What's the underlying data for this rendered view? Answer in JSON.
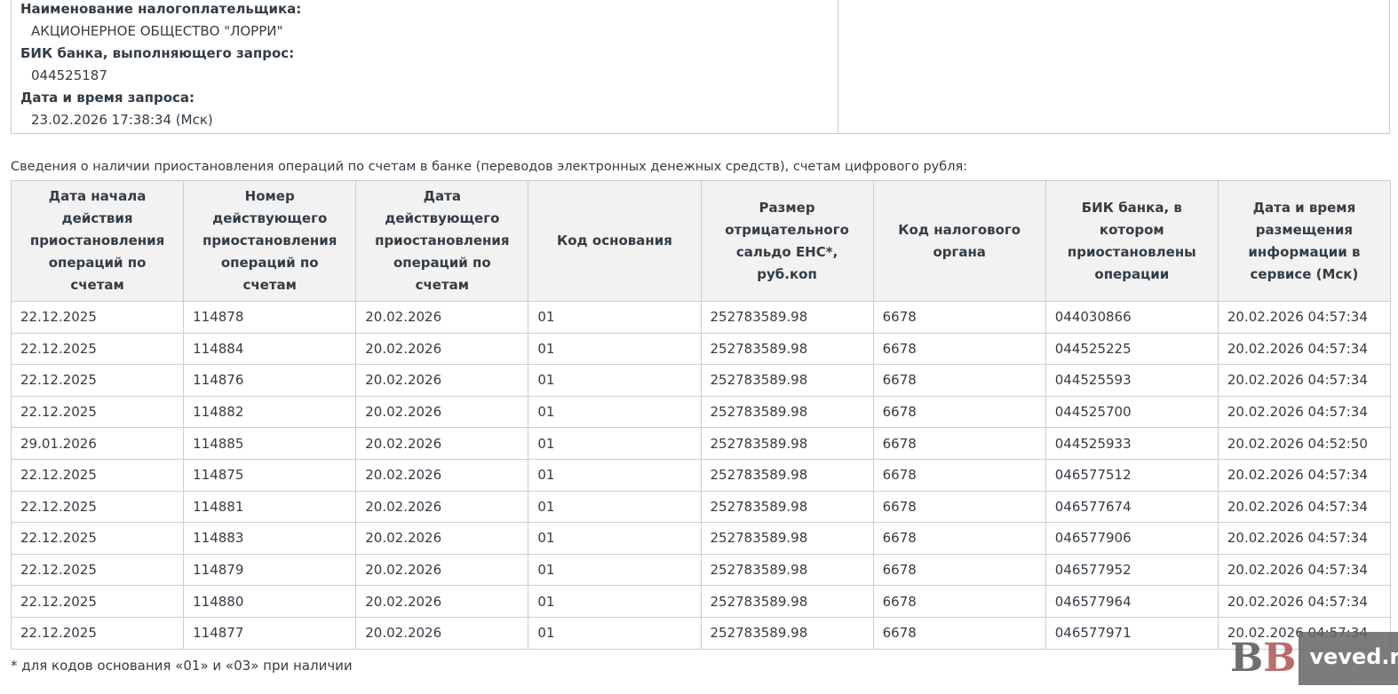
{
  "info": {
    "taxpayer_label": "Наименование налогоплательщика:",
    "taxpayer_value": "АКЦИОНЕРНОЕ ОБЩЕСТВО \"ЛОРРИ\"",
    "bik_label": "БИК банка, выполняющего запрос:",
    "bik_value": "044525187",
    "datetime_label": "Дата и время запроса:",
    "datetime_value": "23.02.2026 17:38:34 (Мск)"
  },
  "caption": "Сведения о наличии приостановления операций по счетам в банке (переводов электронных денежных средств), счетам цифрового рубля:",
  "table": {
    "headers": [
      "Дата начала действия приостановления операций по счетам",
      "Номер действующего приостановления операций по счетам",
      "Дата действующего приостановления операций по счетам",
      "Код основания",
      "Размер отрицательного сальдо ЕНС*, руб.коп",
      "Код налогового органа",
      "БИК банка, в котором приостановлены операции",
      "Дата и время размещения информации в сервисе (Мск)"
    ],
    "rows": [
      [
        "22.12.2025",
        "114878",
        "20.02.2026",
        "01",
        "252783589.98",
        "6678",
        "044030866",
        "20.02.2026 04:57:34"
      ],
      [
        "22.12.2025",
        "114884",
        "20.02.2026",
        "01",
        "252783589.98",
        "6678",
        "044525225",
        "20.02.2026 04:57:34"
      ],
      [
        "22.12.2025",
        "114876",
        "20.02.2026",
        "01",
        "252783589.98",
        "6678",
        "044525593",
        "20.02.2026 04:57:34"
      ],
      [
        "22.12.2025",
        "114882",
        "20.02.2026",
        "01",
        "252783589.98",
        "6678",
        "044525700",
        "20.02.2026 04:57:34"
      ],
      [
        "29.01.2026",
        "114885",
        "20.02.2026",
        "01",
        "252783589.98",
        "6678",
        "044525933",
        "20.02.2026 04:52:50"
      ],
      [
        "22.12.2025",
        "114875",
        "20.02.2026",
        "01",
        "252783589.98",
        "6678",
        "046577512",
        "20.02.2026 04:57:34"
      ],
      [
        "22.12.2025",
        "114881",
        "20.02.2026",
        "01",
        "252783589.98",
        "6678",
        "046577674",
        "20.02.2026 04:57:34"
      ],
      [
        "22.12.2025",
        "114883",
        "20.02.2026",
        "01",
        "252783589.98",
        "6678",
        "046577906",
        "20.02.2026 04:57:34"
      ],
      [
        "22.12.2025",
        "114879",
        "20.02.2026",
        "01",
        "252783589.98",
        "6678",
        "046577952",
        "20.02.2026 04:57:34"
      ],
      [
        "22.12.2025",
        "114880",
        "20.02.2026",
        "01",
        "252783589.98",
        "6678",
        "046577964",
        "20.02.2026 04:57:34"
      ],
      [
        "22.12.2025",
        "114877",
        "20.02.2026",
        "01",
        "252783589.98",
        "6678",
        "046577971",
        "20.02.2026 04:57:34"
      ]
    ]
  },
  "footnote": "* для кодов основания «01» и «03» при наличии",
  "watermark": {
    "logo": "BB",
    "text": "veved.ru"
  }
}
